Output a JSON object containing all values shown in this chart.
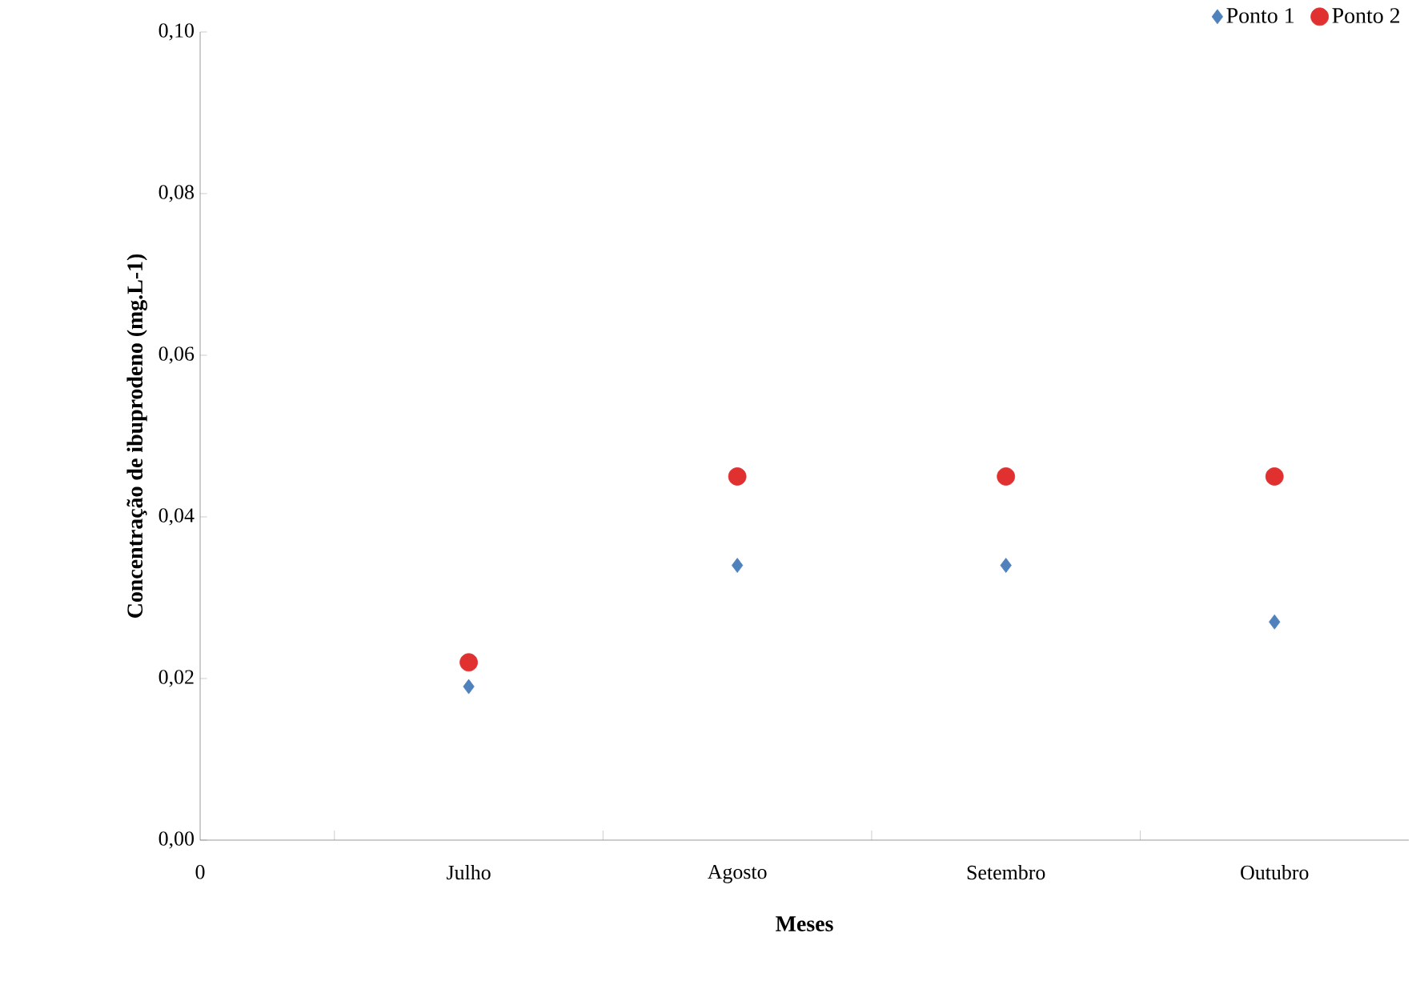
{
  "chart_data": {
    "type": "scatter",
    "xlabel": "Meses",
    "ylabel": "Concentração de ibuprodeno (mg.L-1)",
    "categories": [
      "0",
      "Julho",
      "Agosto",
      "Setembro",
      "Outubro"
    ],
    "series": [
      {
        "name": "Ponto 1",
        "color": "#4f81bd",
        "marker": "diamond",
        "values": [
          null,
          0.019,
          0.034,
          0.034,
          0.027
        ]
      },
      {
        "name": "Ponto 2",
        "color": "#e03030",
        "marker": "circle",
        "values": [
          null,
          0.022,
          0.045,
          0.045,
          0.045
        ]
      }
    ],
    "ylim": [
      0,
      0.1
    ],
    "yticks": [
      {
        "value": 0,
        "label": "0,00"
      },
      {
        "value": 0.02,
        "label": "0,02"
      },
      {
        "value": 0.04,
        "label": "0,04"
      },
      {
        "value": 0.06,
        "label": "0,06"
      },
      {
        "value": 0.08,
        "label": "0,08"
      },
      {
        "value": 0.1,
        "label": "0,10"
      }
    ],
    "grid": false,
    "legend": "top right"
  }
}
